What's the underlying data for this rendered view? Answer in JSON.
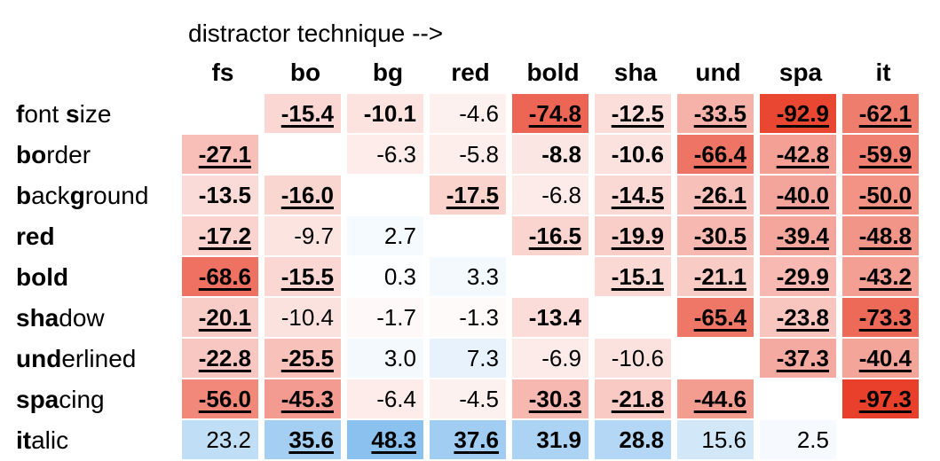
{
  "chart_data": {
    "type": "heatmap",
    "title": "distractor technique -->",
    "columns": [
      "fs",
      "bo",
      "bg",
      "red",
      "bold",
      "sha",
      "und",
      "spa",
      "it"
    ],
    "rows": [
      {
        "label": "font size",
        "bold_parts": [
          [
            0,
            1
          ],
          [
            5,
            6
          ]
        ]
      },
      {
        "label": "border",
        "bold_parts": [
          [
            0,
            2
          ]
        ]
      },
      {
        "label": "background",
        "bold_parts": [
          [
            0,
            1
          ],
          [
            4,
            5
          ]
        ]
      },
      {
        "label": "red",
        "bold_parts": [
          [
            0,
            3
          ]
        ]
      },
      {
        "label": "bold",
        "bold_parts": [
          [
            0,
            4
          ]
        ]
      },
      {
        "label": "shadow",
        "bold_parts": [
          [
            0,
            3
          ]
        ]
      },
      {
        "label": "underlined",
        "bold_parts": [
          [
            0,
            3
          ]
        ]
      },
      {
        "label": "spacing",
        "bold_parts": [
          [
            0,
            3
          ]
        ]
      },
      {
        "label": "italic",
        "bold_parts": [
          [
            0,
            2
          ]
        ]
      }
    ],
    "values": [
      [
        null,
        -15.4,
        -10.1,
        -4.6,
        -74.8,
        -12.5,
        -33.5,
        -92.9,
        -62.1
      ],
      [
        -27.1,
        null,
        -6.3,
        -5.8,
        -8.8,
        -10.6,
        -66.4,
        -42.8,
        -59.9
      ],
      [
        -13.5,
        -16.0,
        null,
        -17.5,
        -6.8,
        -14.5,
        -26.1,
        -40.0,
        -50.0
      ],
      [
        -17.2,
        -9.7,
        2.7,
        null,
        -16.5,
        -19.9,
        -30.5,
        -39.4,
        -48.8
      ],
      [
        -68.6,
        -15.5,
        0.3,
        3.3,
        null,
        -15.1,
        -21.1,
        -29.9,
        -43.2
      ],
      [
        -20.1,
        -10.4,
        -1.7,
        -1.3,
        -13.4,
        null,
        -65.4,
        -23.8,
        -73.3
      ],
      [
        -22.8,
        -25.5,
        3.0,
        7.3,
        -6.9,
        -10.6,
        null,
        -37.3,
        -40.4
      ],
      [
        -56.0,
        -45.3,
        -6.4,
        -4.5,
        -30.3,
        -21.8,
        -44.6,
        null,
        -97.3
      ],
      [
        23.2,
        35.6,
        48.3,
        37.6,
        31.9,
        28.8,
        15.6,
        2.5,
        null
      ]
    ],
    "bold": [
      [
        0,
        1,
        1,
        0,
        1,
        1,
        1,
        1,
        1
      ],
      [
        1,
        0,
        0,
        0,
        1,
        1,
        1,
        1,
        1
      ],
      [
        1,
        1,
        0,
        1,
        0,
        1,
        1,
        1,
        1
      ],
      [
        1,
        0,
        0,
        0,
        1,
        1,
        1,
        1,
        1
      ],
      [
        1,
        1,
        0,
        0,
        0,
        1,
        1,
        1,
        1
      ],
      [
        1,
        0,
        0,
        0,
        1,
        0,
        1,
        1,
        1
      ],
      [
        1,
        1,
        0,
        0,
        0,
        0,
        0,
        1,
        1
      ],
      [
        1,
        1,
        0,
        0,
        1,
        1,
        1,
        0,
        1
      ],
      [
        0,
        1,
        1,
        1,
        1,
        1,
        0,
        0,
        0
      ]
    ],
    "underline": [
      [
        0,
        1,
        0,
        0,
        1,
        1,
        1,
        1,
        1
      ],
      [
        1,
        0,
        0,
        0,
        0,
        0,
        1,
        1,
        1
      ],
      [
        0,
        1,
        0,
        1,
        0,
        1,
        1,
        1,
        1
      ],
      [
        1,
        0,
        0,
        0,
        1,
        1,
        1,
        1,
        1
      ],
      [
        1,
        1,
        0,
        0,
        0,
        1,
        1,
        1,
        1
      ],
      [
        1,
        0,
        0,
        0,
        0,
        0,
        1,
        1,
        1
      ],
      [
        1,
        1,
        0,
        0,
        0,
        0,
        0,
        1,
        1
      ],
      [
        1,
        1,
        0,
        0,
        1,
        1,
        1,
        0,
        1
      ],
      [
        0,
        1,
        1,
        1,
        0,
        0,
        0,
        0,
        0
      ]
    ],
    "color_scale": {
      "negative": "#e8402a",
      "positive": "#2a8ee0",
      "neutral": "#ffffff",
      "max_abs": 97.3
    }
  }
}
